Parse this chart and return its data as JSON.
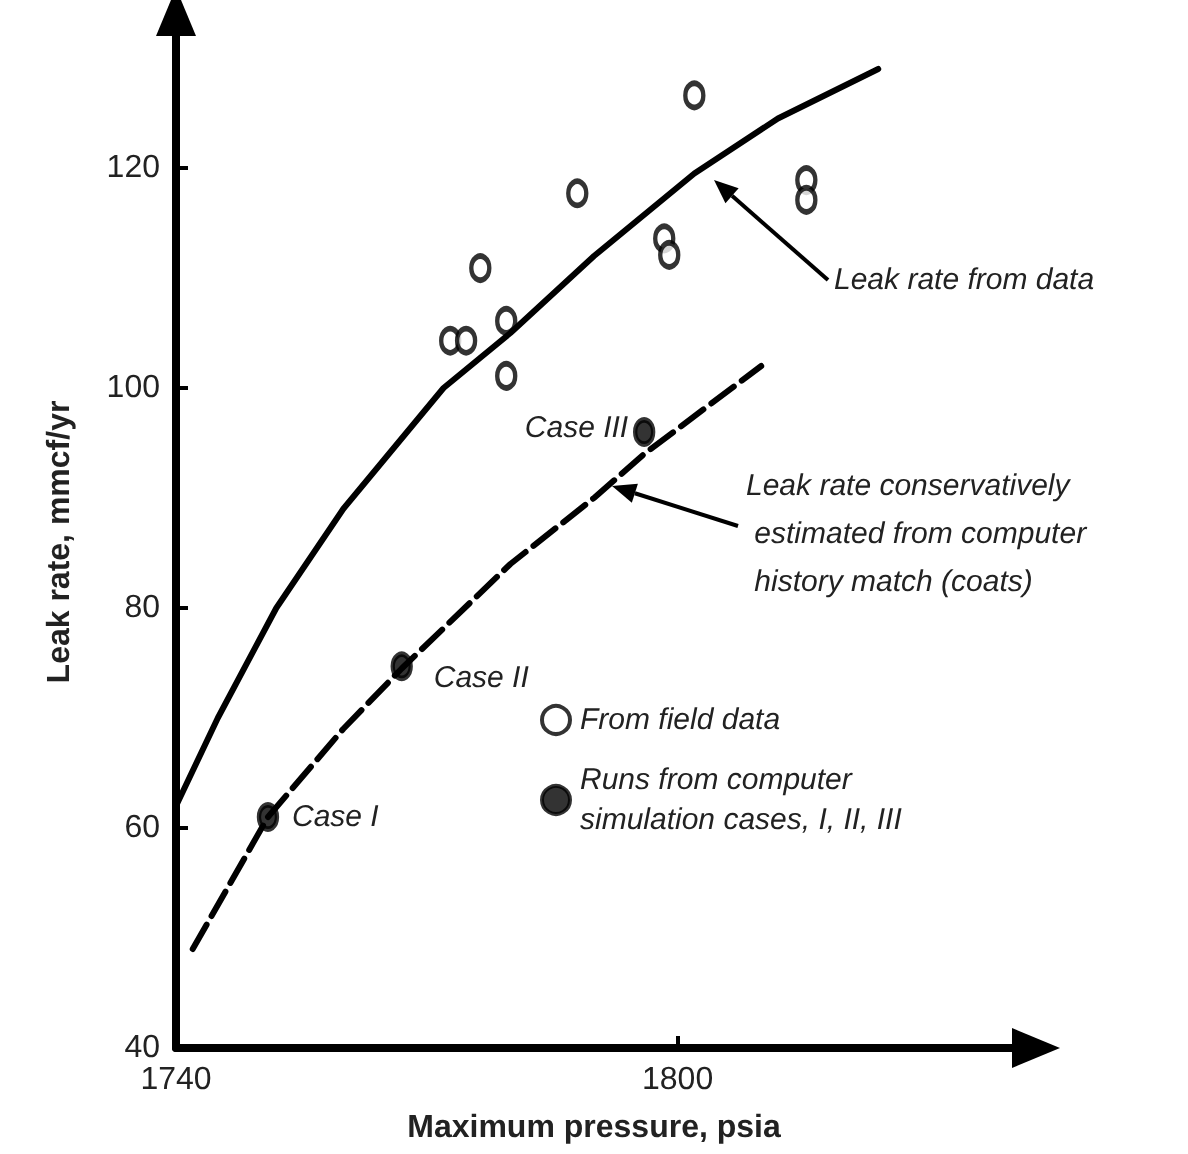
{
  "chart_data": {
    "type": "line",
    "xlabel": "Maximum pressure, psia",
    "ylabel": "Leak rate, mmcf/yr",
    "xlim": [
      1740,
      1840
    ],
    "xticks": [
      1740,
      1800
    ],
    "ylim": [
      40,
      132
    ],
    "yticks": [
      40,
      60,
      80,
      100,
      120
    ],
    "grid": false,
    "legend": "right",
    "series": [
      {
        "color": "#000000",
        "line_style": "solid",
        "marker": "none",
        "x": [
          1740,
          1745,
          1752,
          1760,
          1772,
          1780,
          1790,
          1802,
          1812,
          1824
        ],
        "values": [
          62,
          70,
          80,
          89,
          100,
          105,
          112,
          119.5,
          124.5,
          129
        ]
      },
      {
        "color": "#000000",
        "line_style": "dashed",
        "marker": "none",
        "x": [
          1742,
          1751,
          1760,
          1767,
          1780,
          1790,
          1796,
          1810
        ],
        "values": [
          49,
          61,
          69,
          74.5,
          84,
          90,
          94,
          102
        ]
      },
      {
        "type": "scatter",
        "name": "From field data",
        "color": "#ffffff",
        "marker": "circle",
        "x": [
          1802,
          1788,
          1776.4,
          1779.5,
          1772.8,
          1774.7,
          1779.5,
          1798.4,
          1799,
          1815.4,
          1815.4
        ],
        "values": [
          126.6,
          117.7,
          110.9,
          106.1,
          104.3,
          104.3,
          101.1,
          113.6,
          112.1,
          118.9,
          117.1
        ]
      },
      {
        "type": "scatter",
        "name": "Runs from computer simulation cases, I, II, III",
        "color": "#000000",
        "marker": "circle",
        "x": [
          1751,
          1767,
          1796
        ],
        "values": [
          61,
          74.7,
          96
        ]
      }
    ],
    "annotations": [
      {
        "text": "Case I",
        "x": 1751,
        "y": 61
      },
      {
        "text": "Case II",
        "x": 1767,
        "y": 74.7
      },
      {
        "text": "Case III",
        "x": 1796,
        "y": 96
      },
      "Leak rate from data",
      "Leak rate conservatively estimated from computer history match (coats)"
    ]
  }
}
